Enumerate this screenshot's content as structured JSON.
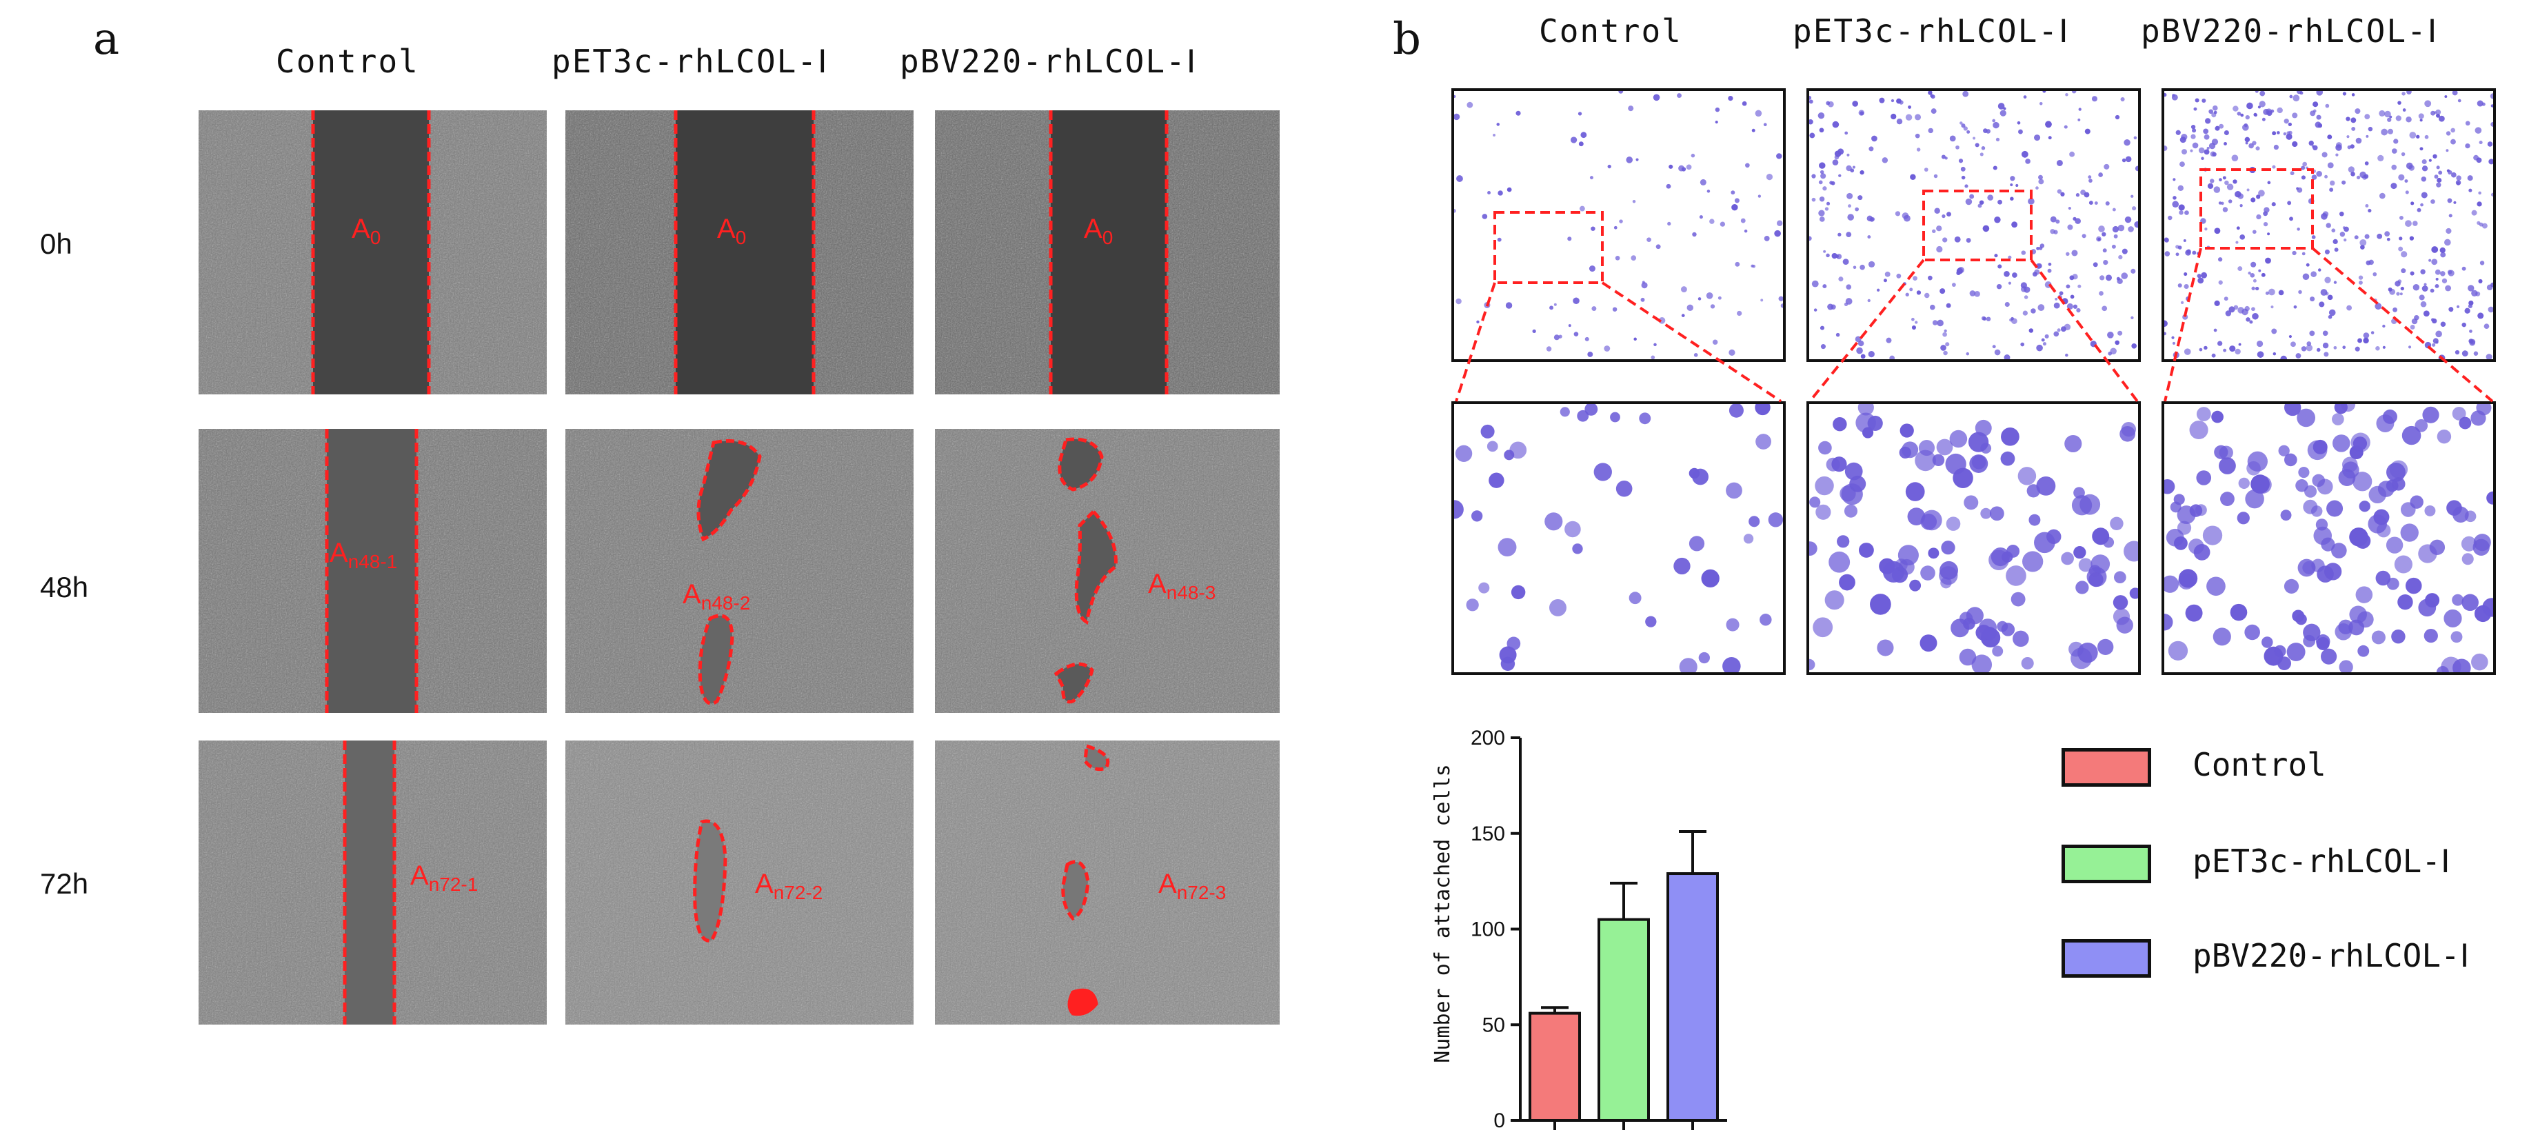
{
  "panel_a": {
    "letter": "a",
    "columns": [
      "Control",
      "pET3c-rhLCOL-Ⅰ",
      "pBV220-rhLCOL-Ⅰ"
    ],
    "rows": [
      "0h",
      "48h",
      "72h"
    ],
    "labels": {
      "r0": [
        {
          "main": "A",
          "sub": "0"
        },
        {
          "main": "A",
          "sub": "0"
        },
        {
          "main": "A",
          "sub": "0"
        }
      ],
      "r1": [
        {
          "main": "A",
          "sub": "n48-1"
        },
        {
          "main": "A",
          "sub": "n48-2"
        },
        {
          "main": "A",
          "sub": "n48-3"
        }
      ],
      "r2": [
        {
          "main": "A",
          "sub": "n72-1"
        },
        {
          "main": "A",
          "sub": "n72-2"
        },
        {
          "main": "A",
          "sub": "n72-3"
        }
      ]
    },
    "colors": {
      "outline": "#ff2020"
    }
  },
  "panel_b": {
    "letter": "b",
    "columns": [
      "Control",
      "pET3c-rhLCOL-Ⅰ",
      "pBV220-rhLCOL-Ⅰ"
    ],
    "colors": {
      "stain": "#6b5bd8",
      "zoom_box": "#ff2020"
    }
  },
  "chart_data": {
    "type": "bar",
    "categories": [
      "Control",
      "pET3c-rhLCOL-Ⅰ",
      "pBV220-rhLCOL-Ⅰ"
    ],
    "values": [
      56,
      105,
      129
    ],
    "errors": [
      3,
      19,
      22
    ],
    "colors": [
      "#f47a7a",
      "#96f196",
      "#8f8ff5"
    ],
    "ylabel": "Number of attached cells",
    "ylim": [
      0,
      200
    ],
    "yticks": [
      0,
      50,
      100,
      150,
      200
    ],
    "legend": [
      "Control",
      "pET3c-rhLCOL-Ⅰ",
      "pBV220-rhLCOL-Ⅰ"
    ],
    "legend_position": "right"
  }
}
